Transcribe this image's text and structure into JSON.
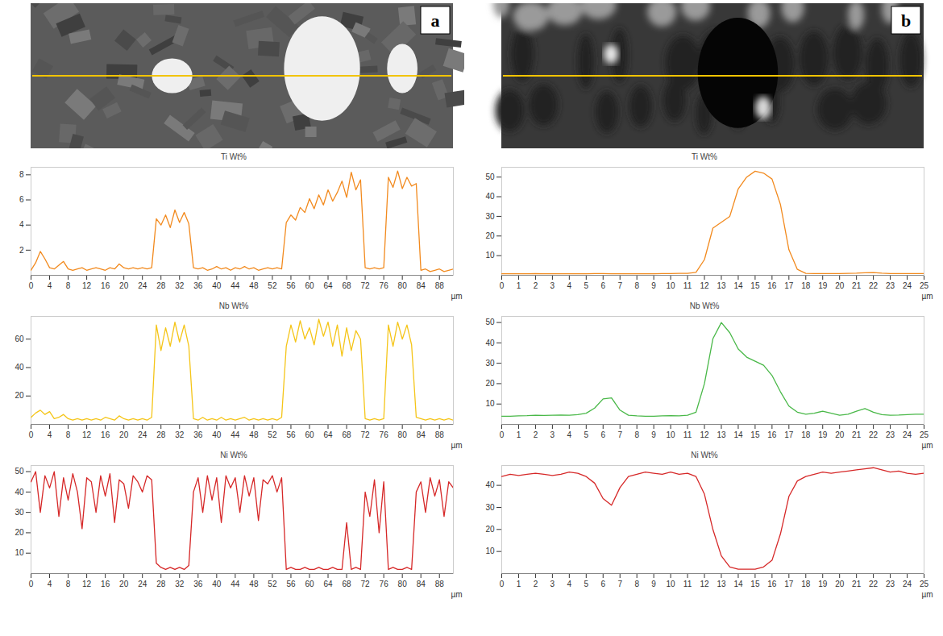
{
  "chart_data": [
    {
      "panel": "a",
      "type": "line",
      "title": "Ti Wt%",
      "xlabel": "µm",
      "color": "#f28a1e",
      "xlim": [
        0,
        91
      ],
      "xticks": [
        0,
        4,
        8,
        12,
        16,
        20,
        24,
        28,
        32,
        36,
        40,
        44,
        48,
        52,
        56,
        60,
        64,
        68,
        72,
        76,
        80,
        84,
        88
      ],
      "ylim": [
        0,
        8.6
      ],
      "yticks": [
        2,
        4,
        6,
        8
      ],
      "x": [
        0,
        1,
        2,
        3,
        4,
        5,
        6,
        7,
        8,
        9,
        10,
        11,
        12,
        13,
        14,
        15,
        16,
        17,
        18,
        19,
        20,
        21,
        22,
        23,
        24,
        25,
        26,
        27,
        28,
        29,
        30,
        31,
        32,
        33,
        34,
        35,
        36,
        37,
        38,
        39,
        40,
        41,
        42,
        43,
        44,
        45,
        46,
        47,
        48,
        49,
        50,
        51,
        52,
        53,
        54,
        55,
        56,
        57,
        58,
        59,
        60,
        61,
        62,
        63,
        64,
        65,
        66,
        67,
        68,
        69,
        70,
        71,
        72,
        73,
        74,
        75,
        76,
        77,
        78,
        79,
        80,
        81,
        82,
        83,
        84,
        85,
        86,
        87,
        88,
        89,
        90,
        91
      ],
      "values": [
        0.4,
        1.0,
        1.9,
        1.3,
        0.6,
        0.5,
        0.8,
        1.1,
        0.5,
        0.4,
        0.5,
        0.6,
        0.4,
        0.5,
        0.6,
        0.5,
        0.4,
        0.6,
        0.5,
        0.9,
        0.6,
        0.5,
        0.6,
        0.5,
        0.6,
        0.5,
        0.6,
        4.5,
        4.0,
        4.8,
        3.8,
        5.2,
        4.2,
        5.0,
        4.1,
        0.6,
        0.5,
        0.6,
        0.4,
        0.5,
        0.7,
        0.5,
        0.6,
        0.4,
        0.6,
        0.5,
        0.7,
        0.5,
        0.6,
        0.4,
        0.5,
        0.6,
        0.5,
        0.6,
        0.5,
        4.2,
        4.8,
        4.4,
        5.4,
        5.0,
        6.1,
        5.3,
        6.4,
        5.6,
        6.8,
        5.9,
        6.6,
        7.5,
        6.2,
        8.2,
        6.8,
        7.6,
        0.6,
        0.5,
        0.6,
        0.5,
        0.6,
        7.8,
        7.0,
        8.3,
        6.9,
        7.8,
        7.1,
        7.3,
        0.4,
        0.5,
        0.3,
        0.4,
        0.5,
        0.3,
        0.4,
        0.5
      ]
    },
    {
      "panel": "a",
      "type": "line",
      "title": "Nb Wt%",
      "xlabel": "µm",
      "color": "#f5c518",
      "xlim": [
        0,
        91
      ],
      "xticks": [
        0,
        4,
        8,
        12,
        16,
        20,
        24,
        28,
        32,
        36,
        40,
        44,
        48,
        52,
        56,
        60,
        64,
        68,
        72,
        76,
        80,
        84,
        88
      ],
      "ylim": [
        0,
        76
      ],
      "yticks": [
        20,
        40,
        60
      ],
      "x": [
        0,
        1,
        2,
        3,
        4,
        5,
        6,
        7,
        8,
        9,
        10,
        11,
        12,
        13,
        14,
        15,
        16,
        17,
        18,
        19,
        20,
        21,
        22,
        23,
        24,
        25,
        26,
        27,
        28,
        29,
        30,
        31,
        32,
        33,
        34,
        35,
        36,
        37,
        38,
        39,
        40,
        41,
        42,
        43,
        44,
        45,
        46,
        47,
        48,
        49,
        50,
        51,
        52,
        53,
        54,
        55,
        56,
        57,
        58,
        59,
        60,
        61,
        62,
        63,
        64,
        65,
        66,
        67,
        68,
        69,
        70,
        71,
        72,
        73,
        74,
        75,
        76,
        77,
        78,
        79,
        80,
        81,
        82,
        83,
        84,
        85,
        86,
        87,
        88,
        89,
        90,
        91
      ],
      "values": [
        5,
        8,
        10,
        7,
        9,
        4,
        5,
        7,
        4,
        3,
        4,
        3,
        4,
        3,
        4,
        3,
        5,
        4,
        3,
        6,
        4,
        3,
        4,
        3,
        4,
        3,
        5,
        70,
        52,
        68,
        55,
        72,
        58,
        70,
        55,
        4,
        3,
        5,
        3,
        4,
        3,
        5,
        3,
        4,
        3,
        4,
        5,
        3,
        4,
        3,
        4,
        3,
        4,
        3,
        5,
        55,
        70,
        58,
        73,
        60,
        68,
        56,
        74,
        62,
        72,
        55,
        70,
        48,
        68,
        52,
        66,
        60,
        4,
        3,
        4,
        3,
        4,
        70,
        55,
        72,
        60,
        70,
        56,
        5,
        4,
        3,
        4,
        3,
        4,
        3,
        4,
        3
      ]
    },
    {
      "panel": "a",
      "type": "line",
      "title": "Ni Wt%",
      "xlabel": "µm",
      "color": "#d62828",
      "xlim": [
        0,
        91
      ],
      "xticks": [
        0,
        4,
        8,
        12,
        16,
        20,
        24,
        28,
        32,
        36,
        40,
        44,
        48,
        52,
        56,
        60,
        64,
        68,
        72,
        76,
        80,
        84,
        88
      ],
      "ylim": [
        0,
        53
      ],
      "yticks": [
        10,
        20,
        30,
        40,
        50
      ],
      "x": [
        0,
        1,
        2,
        3,
        4,
        5,
        6,
        7,
        8,
        9,
        10,
        11,
        12,
        13,
        14,
        15,
        16,
        17,
        18,
        19,
        20,
        21,
        22,
        23,
        24,
        25,
        26,
        27,
        28,
        29,
        30,
        31,
        32,
        33,
        34,
        35,
        36,
        37,
        38,
        39,
        40,
        41,
        42,
        43,
        44,
        45,
        46,
        47,
        48,
        49,
        50,
        51,
        52,
        53,
        54,
        55,
        56,
        57,
        58,
        59,
        60,
        61,
        62,
        63,
        64,
        65,
        66,
        67,
        68,
        69,
        70,
        71,
        72,
        73,
        74,
        75,
        76,
        77,
        78,
        79,
        80,
        81,
        82,
        83,
        84,
        85,
        86,
        87,
        88,
        89,
        90,
        91
      ],
      "values": [
        45,
        50,
        30,
        48,
        42,
        50,
        28,
        47,
        36,
        49,
        40,
        22,
        47,
        45,
        30,
        48,
        38,
        49,
        25,
        46,
        44,
        32,
        48,
        45,
        40,
        48,
        46,
        5,
        3,
        2,
        3,
        2,
        3,
        2,
        4,
        40,
        47,
        30,
        48,
        36,
        47,
        25,
        48,
        42,
        47,
        30,
        48,
        38,
        47,
        26,
        46,
        44,
        48,
        40,
        47,
        2,
        3,
        2,
        2,
        3,
        2,
        2,
        3,
        2,
        2,
        3,
        2,
        2,
        25,
        2,
        3,
        2,
        40,
        28,
        46,
        20,
        45,
        2,
        3,
        2,
        2,
        3,
        2,
        40,
        45,
        30,
        47,
        38,
        46,
        28,
        45,
        42
      ]
    },
    {
      "panel": "b",
      "type": "line",
      "title": "Ti Wt%",
      "xlabel": "µm",
      "color": "#f28a1e",
      "xlim": [
        0,
        25
      ],
      "xticks": [
        0,
        1,
        2,
        3,
        4,
        5,
        6,
        7,
        8,
        9,
        10,
        11,
        12,
        13,
        14,
        15,
        16,
        17,
        18,
        19,
        20,
        21,
        22,
        23,
        24,
        25
      ],
      "ylim": [
        0,
        55
      ],
      "yticks": [
        10,
        20,
        30,
        40,
        50
      ],
      "x": [
        0,
        0.5,
        1,
        1.5,
        2,
        2.5,
        3,
        3.5,
        4,
        4.5,
        5,
        5.5,
        6,
        6.5,
        7,
        7.5,
        8,
        8.5,
        9,
        9.5,
        10,
        10.5,
        11,
        11.5,
        12,
        12.5,
        13,
        13.5,
        14,
        14.5,
        15,
        15.5,
        16,
        16.5,
        17,
        17.5,
        18,
        18.5,
        19,
        19.5,
        20,
        20.5,
        21,
        21.5,
        22,
        22.5,
        23,
        23.5,
        24,
        24.5,
        25
      ],
      "values": [
        0.8,
        0.8,
        0.8,
        0.8,
        0.9,
        0.8,
        0.8,
        0.8,
        0.8,
        0.8,
        0.8,
        0.9,
        0.9,
        0.8,
        0.8,
        0.8,
        0.8,
        0.8,
        0.8,
        0.9,
        0.9,
        1.0,
        1.0,
        1.5,
        8,
        24,
        27,
        30,
        44,
        50,
        53,
        52,
        49,
        36,
        13,
        3,
        1.0,
        0.9,
        0.9,
        0.9,
        0.9,
        1.0,
        1.1,
        1.3,
        1.4,
        1.1,
        0.9,
        0.9,
        0.9,
        0.9,
        0.9
      ]
    },
    {
      "panel": "b",
      "type": "line",
      "title": "Nb Wt%",
      "xlabel": "µm",
      "color": "#49b848",
      "xlim": [
        0,
        25
      ],
      "xticks": [
        0,
        1,
        2,
        3,
        4,
        5,
        6,
        7,
        8,
        9,
        10,
        11,
        12,
        13,
        14,
        15,
        16,
        17,
        18,
        19,
        20,
        21,
        22,
        23,
        24,
        25
      ],
      "ylim": [
        0,
        53
      ],
      "yticks": [
        10,
        20,
        30,
        40,
        50
      ],
      "x": [
        0,
        0.5,
        1,
        1.5,
        2,
        2.5,
        3,
        3.5,
        4,
        4.5,
        5,
        5.5,
        6,
        6.5,
        7,
        7.5,
        8,
        8.5,
        9,
        9.5,
        10,
        10.5,
        11,
        11.5,
        12,
        12.5,
        13,
        13.5,
        14,
        14.5,
        15,
        15.5,
        16,
        16.5,
        17,
        17.5,
        18,
        18.5,
        19,
        19.5,
        20,
        20.5,
        21,
        21.5,
        22,
        22.5,
        23,
        23.5,
        24,
        24.5,
        25
      ],
      "values": [
        4,
        4,
        4.2,
        4.3,
        4.5,
        4.4,
        4.5,
        4.6,
        4.5,
        4.8,
        5.5,
        8,
        12.5,
        13,
        7,
        4.5,
        4.2,
        4,
        4,
        4.2,
        4.3,
        4.2,
        4.5,
        6,
        20,
        42,
        50,
        45,
        37,
        33,
        31,
        29,
        24,
        16,
        9,
        6,
        5,
        5.5,
        6.5,
        5.5,
        4.5,
        5,
        6.5,
        7.8,
        6,
        4.8,
        4.5,
        4.6,
        4.8,
        5,
        5
      ]
    },
    {
      "panel": "b",
      "type": "line",
      "title": "Ni Wt%",
      "xlabel": "µm",
      "color": "#d62828",
      "xlim": [
        0,
        25
      ],
      "xticks": [
        0,
        1,
        2,
        3,
        4,
        5,
        6,
        7,
        8,
        9,
        10,
        11,
        12,
        13,
        14,
        15,
        16,
        17,
        18,
        19,
        20,
        21,
        22,
        23,
        24,
        25
      ],
      "ylim": [
        0,
        49
      ],
      "yticks": [
        10,
        20,
        30,
        40
      ],
      "x": [
        0,
        0.5,
        1,
        1.5,
        2,
        2.5,
        3,
        3.5,
        4,
        4.5,
        5,
        5.5,
        6,
        6.5,
        7,
        7.5,
        8,
        8.5,
        9,
        9.5,
        10,
        10.5,
        11,
        11.5,
        12,
        12.5,
        13,
        13.5,
        14,
        14.5,
        15,
        15.5,
        16,
        16.5,
        17,
        17.5,
        18,
        18.5,
        19,
        19.5,
        20,
        20.5,
        21,
        21.5,
        22,
        22.5,
        23,
        23.5,
        24,
        24.5,
        25
      ],
      "values": [
        44,
        45,
        44.5,
        45,
        45.5,
        45,
        44.5,
        45,
        46,
        45.5,
        44,
        41,
        34,
        31,
        39,
        44,
        45,
        46,
        45.5,
        45,
        46,
        45,
        45.5,
        44,
        36,
        20,
        8,
        3,
        2,
        2,
        2,
        3,
        6,
        18,
        35,
        42,
        44,
        45,
        46,
        45.5,
        46,
        46.5,
        47,
        47.5,
        48,
        47,
        46,
        46.5,
        45.5,
        45,
        45.5
      ]
    }
  ]
}
